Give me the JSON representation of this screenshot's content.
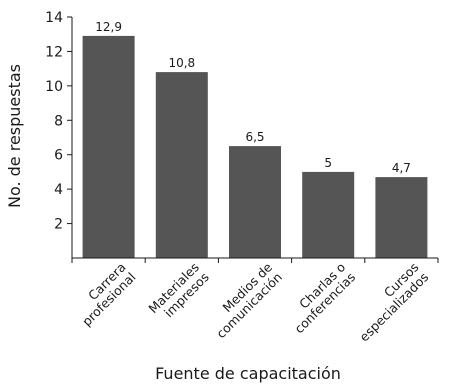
{
  "chart_data": {
    "type": "bar",
    "title": "",
    "xlabel": "Fuente de capacitación",
    "ylabel": "No. de respuestas",
    "ylim": [
      0,
      14
    ],
    "yticks": [
      2,
      4,
      6,
      8,
      10,
      12,
      14
    ],
    "grid": false,
    "categories": [
      [
        "Carrera",
        "profesional"
      ],
      [
        "Materiales",
        "impresos"
      ],
      [
        "Medios de",
        "comunicación"
      ],
      [
        "Charlas o",
        "conferencias"
      ],
      [
        "Cursos",
        "especializados"
      ]
    ],
    "values": [
      12.9,
      10.8,
      6.5,
      5,
      4.7
    ],
    "value_labels": [
      "12,9",
      "10,8",
      "6,5",
      "5",
      "4,7"
    ],
    "bar_color": "#555555"
  }
}
